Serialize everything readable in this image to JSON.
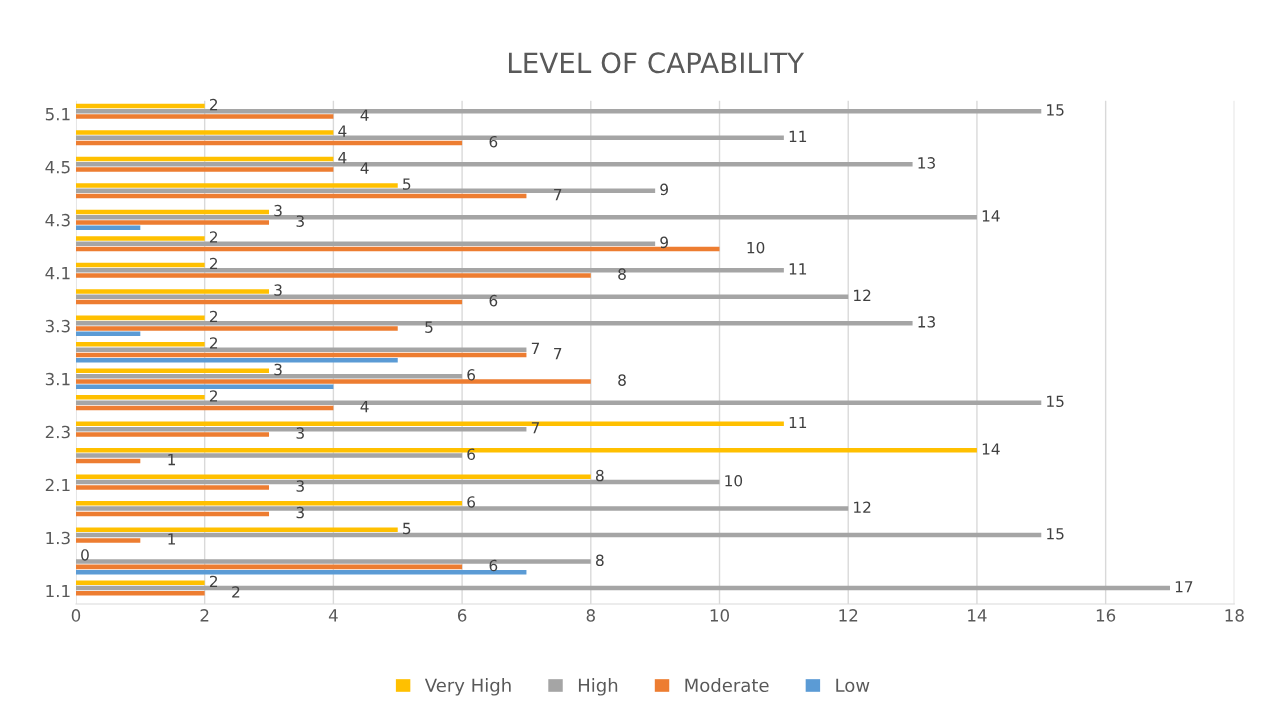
{
  "chart_data": {
    "type": "bar",
    "orientation": "horizontal",
    "title": "LEVEL OF CAPABILITY",
    "categories": [
      "5.1",
      null,
      "4.5",
      null,
      "4.3",
      null,
      "4.1",
      null,
      "3.3",
      null,
      "3.1",
      null,
      "2.3",
      null,
      "2.1",
      null,
      "1.3",
      null,
      "1.1"
    ],
    "series": [
      {
        "name": "Very High",
        "color": "#ffc000",
        "values": [
          2,
          4,
          4,
          5,
          3,
          2,
          2,
          3,
          2,
          2,
          3,
          2,
          11,
          14,
          8,
          6,
          5,
          0,
          2
        ]
      },
      {
        "name": "High",
        "color": "#a5a5a5",
        "values": [
          15,
          11,
          13,
          9,
          14,
          9,
          11,
          12,
          13,
          7,
          6,
          15,
          7,
          6,
          10,
          12,
          15,
          8,
          17
        ]
      },
      {
        "name": "Moderate",
        "color": "#ed7d31",
        "values": [
          4,
          6,
          4,
          7,
          3,
          10,
          8,
          6,
          5,
          7,
          8,
          4,
          3,
          1,
          3,
          3,
          1,
          6,
          2
        ]
      },
      {
        "name": "Low",
        "color": "#5b9bd5",
        "values": [
          null,
          null,
          null,
          null,
          1,
          null,
          null,
          null,
          1,
          5,
          4,
          null,
          null,
          null,
          null,
          null,
          null,
          7,
          null
        ],
        "value_labels": [
          null,
          null,
          null,
          null,
          null,
          null,
          null,
          null,
          null,
          null,
          null,
          null,
          null,
          null,
          null,
          null,
          null,
          null,
          null
        ]
      }
    ],
    "data_labels": true,
    "xlim": [
      0,
      18
    ],
    "xticks": [
      0,
      2,
      4,
      6,
      8,
      10,
      12,
      14,
      16,
      18
    ],
    "grid": "x",
    "legend": "bottom"
  }
}
